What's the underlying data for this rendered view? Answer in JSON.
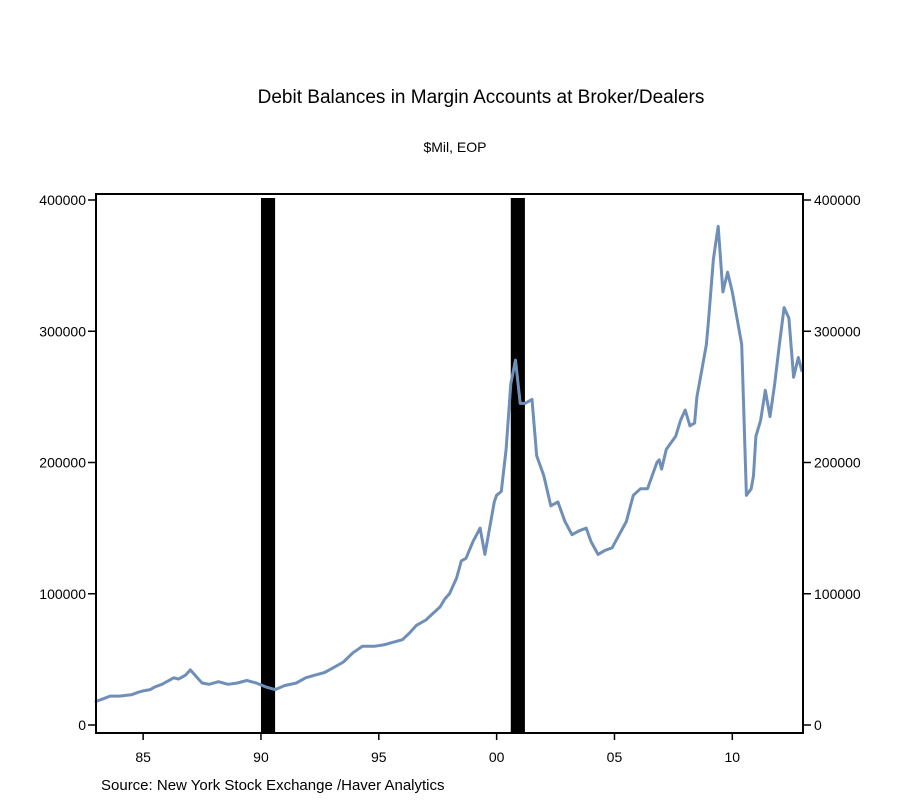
{
  "chart_data": {
    "type": "line",
    "title": "Debit Balances in Margin Accounts at Broker/Dealers",
    "subtitle": "$Mil, EOP",
    "source": "Source:  New York Stock Exchange /Haver Analytics",
    "xlabel": "",
    "ylabel": "",
    "xlim": [
      1983.0,
      2013.0
    ],
    "ylim": [
      0,
      400000
    ],
    "x_ticks": [
      1985,
      1990,
      1995,
      2000,
      2005,
      2010
    ],
    "x_tick_labels": [
      "85",
      "90",
      "95",
      "00",
      "05",
      "10"
    ],
    "y_ticks": [
      0,
      100000,
      200000,
      300000,
      400000
    ],
    "y_tick_labels": [
      "0",
      "100000",
      "200000",
      "300000",
      "400000"
    ],
    "recessions": [
      [
        1990.0,
        1990.6
      ],
      [
        2000.6,
        2001.2
      ]
    ],
    "grid": false,
    "line_color": "#6f8fb8",
    "recession_color": "#000000",
    "series": [
      {
        "x": [
          1983.0,
          1983.3,
          1983.6,
          1984.0,
          1984.5,
          1984.8,
          1985.0,
          1985.3,
          1985.5,
          1985.8,
          1986.0,
          1986.3,
          1986.5,
          1986.8,
          1987.0,
          1987.3,
          1987.5,
          1987.8,
          1988.2,
          1988.6,
          1989.0,
          1989.4,
          1989.8,
          1990.2,
          1990.6,
          1991.0,
          1991.5,
          1991.9,
          1992.3,
          1992.7,
          1993.1,
          1993.5,
          1993.9,
          1994.3,
          1994.8,
          1995.2,
          1995.6,
          1996.0,
          1996.3,
          1996.6,
          1997.0,
          1997.3,
          1997.6,
          1997.8,
          1998.0,
          1998.3,
          1998.5,
          1998.7,
          1999.0,
          1999.3,
          1999.5,
          1999.7,
          1999.9,
          2000.0,
          2000.2,
          2000.4,
          2000.6,
          2000.8,
          2001.0,
          2001.2,
          2001.5,
          2001.7,
          2002.0,
          2002.3,
          2002.6,
          2002.9,
          2003.2,
          2003.5,
          2003.8,
          2004.0,
          2004.3,
          2004.6,
          2004.9,
          2005.2,
          2005.5,
          2005.8,
          2006.1,
          2006.4,
          2006.6,
          2006.8,
          2006.9,
          2007.0,
          2007.2,
          2007.4,
          2007.6,
          2007.8,
          2008.0,
          2008.2,
          2008.4,
          2008.5,
          2008.7,
          2008.9,
          2009.0,
          2009.2,
          2009.4,
          2009.6,
          2009.8,
          2010.0,
          2010.2,
          2010.4,
          2010.6,
          2010.8,
          2010.9,
          2011.0,
          2011.2,
          2011.4,
          2011.6,
          2011.8,
          2012.0,
          2012.2,
          2012.4,
          2012.6,
          2012.8,
          2012.95
        ],
        "values": [
          18000,
          20000,
          22000,
          22000,
          23000,
          25000,
          26000,
          27000,
          29000,
          31000,
          33000,
          36000,
          35000,
          38000,
          42000,
          36000,
          32000,
          31000,
          33000,
          31000,
          32000,
          34000,
          32000,
          29000,
          27000,
          30000,
          32000,
          36000,
          38000,
          40000,
          44000,
          48000,
          55000,
          60000,
          60000,
          61000,
          63000,
          65000,
          70000,
          76000,
          80000,
          85000,
          90000,
          96000,
          100000,
          112000,
          125000,
          127000,
          140000,
          150000,
          130000,
          150000,
          170000,
          175000,
          178000,
          210000,
          260000,
          278000,
          245000,
          245000,
          248000,
          205000,
          190000,
          167000,
          170000,
          155000,
          145000,
          148000,
          150000,
          140000,
          130000,
          133000,
          135000,
          145000,
          155000,
          175000,
          180000,
          180000,
          190000,
          200000,
          202000,
          195000,
          210000,
          215000,
          220000,
          232000,
          240000,
          228000,
          230000,
          250000,
          270000,
          290000,
          310000,
          355000,
          380000,
          330000,
          345000,
          330000,
          310000,
          290000,
          175000,
          180000,
          190000,
          220000,
          232000,
          255000,
          235000,
          260000,
          290000,
          318000,
          310000,
          265000,
          280000,
          270000
        ],
        "comment_note_free": true
      }
    ]
  }
}
